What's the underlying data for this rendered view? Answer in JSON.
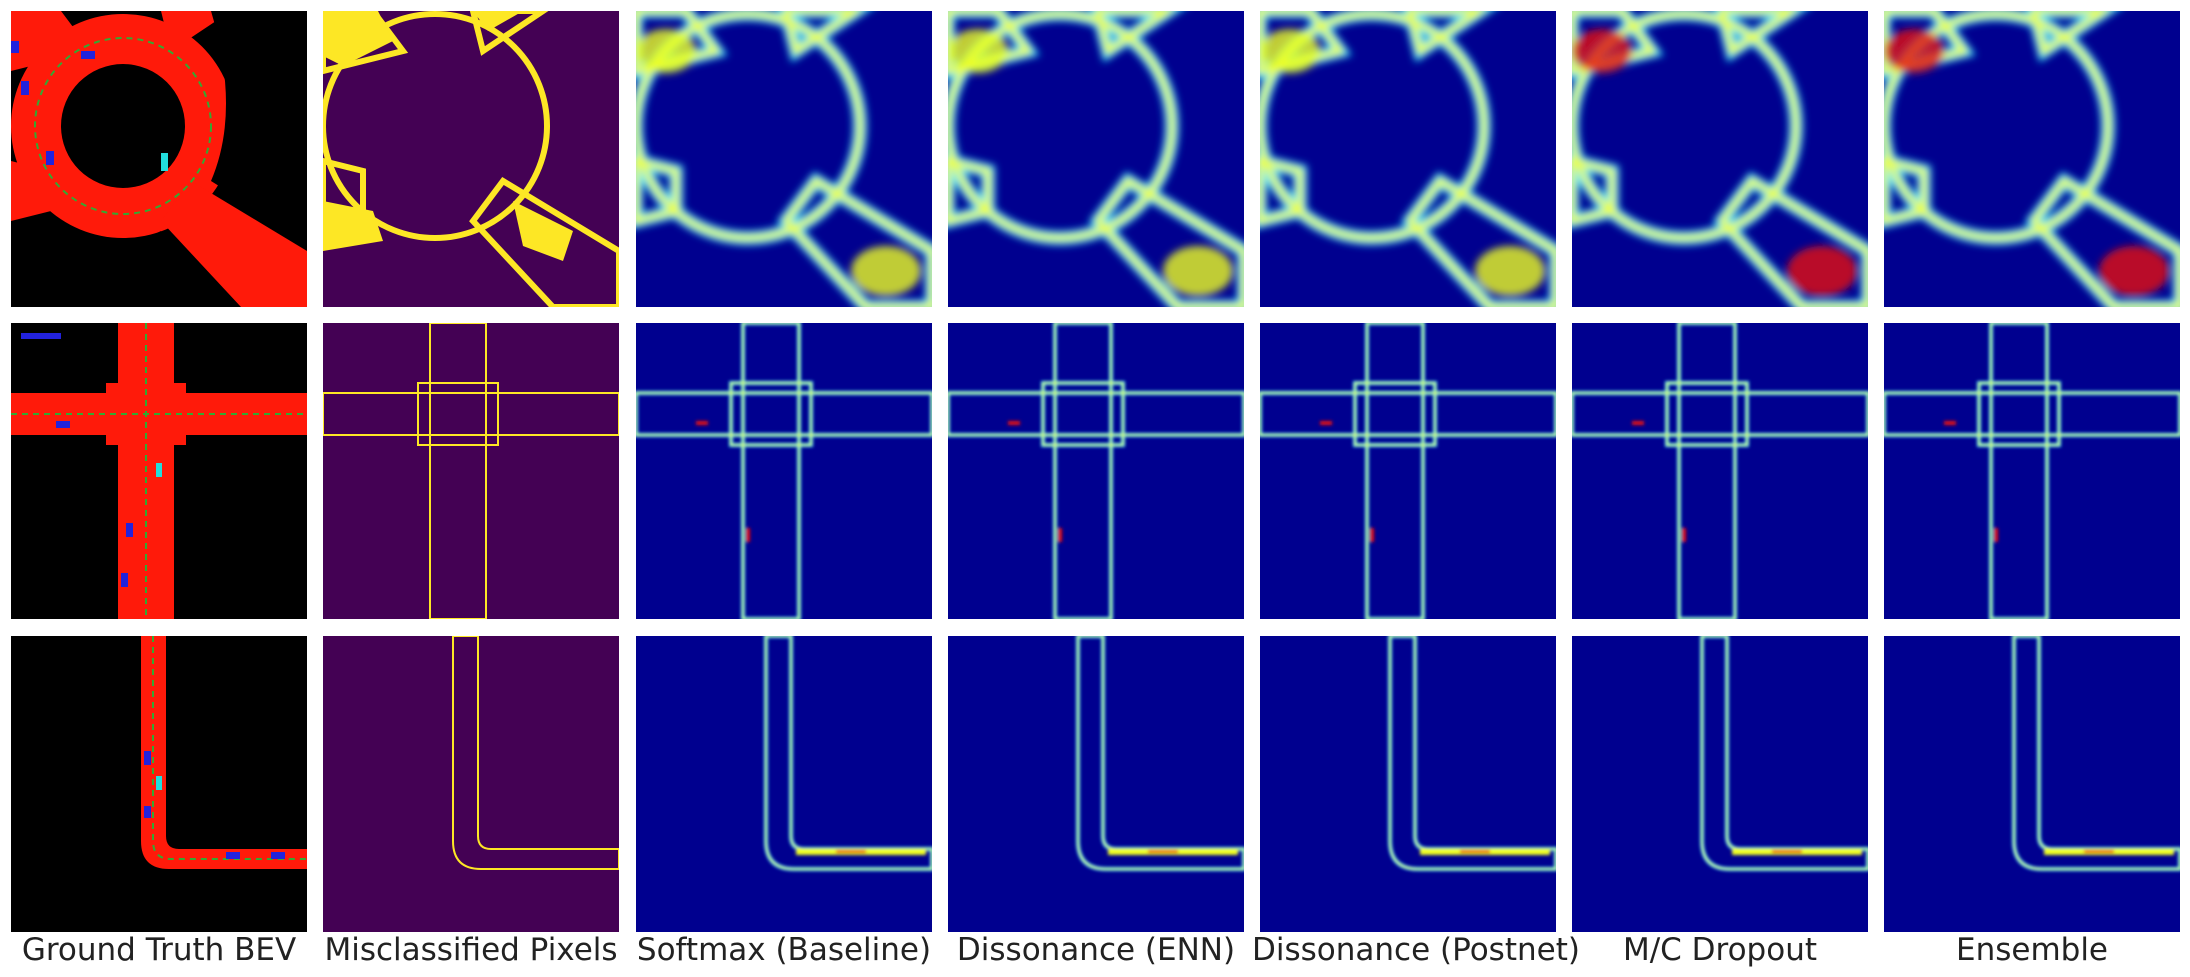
{
  "figure": {
    "columns": [
      {
        "key": "gt",
        "label": "Ground Truth BEV"
      },
      {
        "key": "mis",
        "label": "Misclassified Pixels"
      },
      {
        "key": "softmax",
        "label": "Softmax (Baseline)"
      },
      {
        "key": "enn",
        "label": "Dissonance (ENN)"
      },
      {
        "key": "postnet",
        "label": "Dissonance (Postnet)"
      },
      {
        "key": "mcd",
        "label": "M/C Dropout"
      },
      {
        "key": "ens",
        "label": "Ensemble"
      }
    ],
    "rows": [
      "roundabout",
      "intersection",
      "corner"
    ],
    "colors": {
      "road": "#ff1a0a",
      "background": "#000000",
      "vehicle": "#2222dd",
      "vehicle_alt": "#22dddd",
      "lane": "#33aa33",
      "mis_bg": "#440154",
      "mis_fg": "#fde725",
      "heat_bg": "#00008f",
      "heat_cyan": "#00e0ff",
      "heat_yellow": "#f0ff20",
      "heat_red": "#e81010"
    }
  }
}
